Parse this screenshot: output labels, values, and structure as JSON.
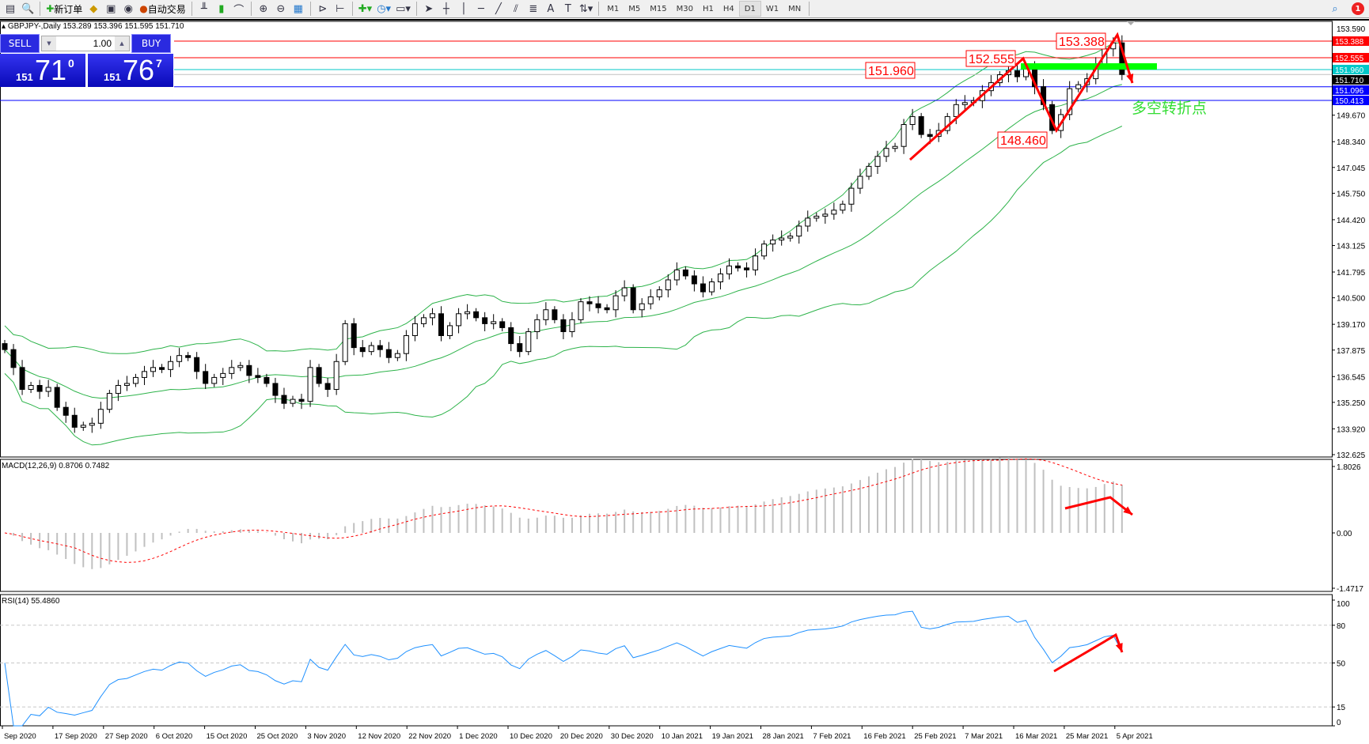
{
  "toolbar": {
    "new_order": "新订单",
    "auto_trading": "自动交易",
    "timeframes": [
      "M1",
      "M5",
      "M15",
      "M30",
      "H1",
      "H4",
      "D1",
      "W1",
      "MN"
    ],
    "active_timeframe": "D1",
    "notification_count": "1"
  },
  "symbol": {
    "header": "GBPJPY-,Daily  153.289 153.396 151.595 151.710"
  },
  "trade_panel": {
    "sell_label": "SELL",
    "buy_label": "BUY",
    "volume": "1.00",
    "sell_price": {
      "small": "151",
      "big": "71",
      "pip": "0"
    },
    "buy_price": {
      "small": "151",
      "big": "76",
      "pip": "7"
    }
  },
  "price_axis": {
    "ticks": [
      "149.670",
      "148.340",
      "147.045",
      "145.750",
      "144.420",
      "143.125",
      "141.795",
      "140.500",
      "139.170",
      "137.875",
      "136.545",
      "135.250",
      "133.920",
      "132.625"
    ],
    "top": "153.590"
  },
  "levels": [
    {
      "price": "153.388",
      "color": "#ff0000"
    },
    {
      "price": "152.555",
      "color": "#ff0000"
    },
    {
      "price": "151.960",
      "color": "#00c8c8"
    },
    {
      "price": "151.710",
      "color": "#000000",
      "bid": true
    },
    {
      "price": "151.096",
      "color": "#0000ff"
    },
    {
      "price": "150.413",
      "color": "#0000ff"
    }
  ],
  "annotations": {
    "labels": [
      "153.388",
      "152.555",
      "151.960",
      "148.460"
    ],
    "text": "多空转折点",
    "text_color": "#33dd33",
    "arrow_color": "#ff0000",
    "zone_color": "#00ff00"
  },
  "chart_data": {
    "type": "candlestick",
    "symbol": "GBPJPY",
    "timeframe": "Daily",
    "closes": [
      137.9,
      137.0,
      135.9,
      136.1,
      135.8,
      136.0,
      135.0,
      134.6,
      134.0,
      134.1,
      134.2,
      134.9,
      135.7,
      136.1,
      136.2,
      136.5,
      136.8,
      137.0,
      136.9,
      137.3,
      137.6,
      137.5,
      136.8,
      136.2,
      136.5,
      136.7,
      137.0,
      137.1,
      136.6,
      136.5,
      136.2,
      135.6,
      135.2,
      135.4,
      135.3,
      137.0,
      136.2,
      135.9,
      137.3,
      139.2,
      138.0,
      137.8,
      138.1,
      137.9,
      137.5,
      137.7,
      138.6,
      139.2,
      139.5,
      139.7,
      138.6,
      139.1,
      139.7,
      139.8,
      139.5,
      139.2,
      139.3,
      139.0,
      138.2,
      137.8,
      138.8,
      139.4,
      139.9,
      139.4,
      138.8,
      139.4,
      140.3,
      140.2,
      140.0,
      139.9,
      140.6,
      141.0,
      139.9,
      140.2,
      140.55,
      140.9,
      141.4,
      141.9,
      141.6,
      141.2,
      140.8,
      141.3,
      141.7,
      142.1,
      142.0,
      141.9,
      142.6,
      143.2,
      143.4,
      143.5,
      143.6,
      144.1,
      144.5,
      144.6,
      144.7,
      144.9,
      145.2,
      146.0,
      146.6,
      147.1,
      147.6,
      148.0,
      148.1,
      149.2,
      149.6,
      148.7,
      148.6,
      148.9,
      149.6,
      150.2,
      150.3,
      150.4,
      150.9,
      151.3,
      151.7,
      151.9,
      151.6,
      152.1,
      151.1,
      150.2,
      148.9,
      149.7,
      151.0,
      151.2,
      151.5,
      152.2,
      153.0,
      153.3,
      151.71
    ],
    "ylim": [
      132.5,
      154.38
    ],
    "overlays": [
      "Bollinger Bands (20,2)"
    ],
    "x_ticks": [
      "Sep 2020",
      "17 Sep 2020",
      "27 Sep 2020",
      "6 Oct 2020",
      "15 Oct 2020",
      "25 Oct 2020",
      "3 Nov 2020",
      "12 Nov 2020",
      "22 Nov 2020",
      "1 Dec 2020",
      "10 Dec 2020",
      "20 Dec 2020",
      "30 Dec 2020",
      "10 Jan 2021",
      "19 Jan 2021",
      "28 Jan 2021",
      "7 Feb 2021",
      "16 Feb 2021",
      "25 Feb 2021",
      "7 Mar 2021",
      "16 Mar 2021",
      "25 Mar 2021",
      "5 Apr 2021"
    ],
    "colors": {
      "bands": "#2db34a",
      "macd_hist": "#c0c0c0",
      "macd_signal": "#ff0000",
      "rsi": "#1e90ff"
    }
  },
  "macd": {
    "label": "MACD(12,26,9) 0.8706 0.7482",
    "ticks": [
      "1.8026",
      "0.00",
      "-1.4717"
    ]
  },
  "rsi": {
    "label": "RSI(14) 55.4860",
    "ticks": [
      "100",
      "80",
      "50",
      "15",
      "0"
    ]
  }
}
